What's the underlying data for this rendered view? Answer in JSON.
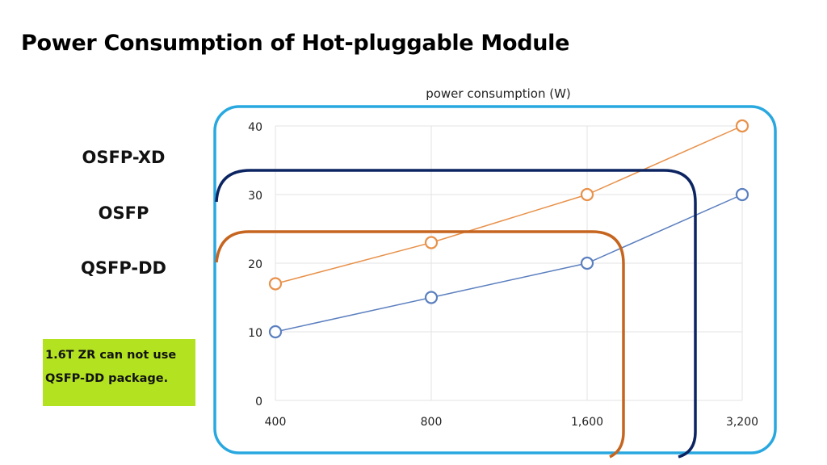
{
  "slide": {
    "title": "Power Consumption of Hot-pluggable Module",
    "labels": [
      "OSFP-XD",
      "OSFP",
      "QSFP-DD"
    ],
    "note": {
      "lines": [
        "1.6T ZR can not use",
        "QSFP-DD package."
      ],
      "background": "#b3e320"
    },
    "box_colors": {
      "OSFP-XD": "#29a8e0",
      "OSFP": "#0c2461",
      "QSFP-DD": "#c5651f"
    }
  },
  "chart_data": {
    "type": "line",
    "title": "power consumption (W)",
    "categories": [
      "400",
      "800",
      "1,600",
      "3,200"
    ],
    "yticks": [
      "0",
      "10",
      "20",
      "30",
      "40"
    ],
    "ylim": [
      0,
      40
    ],
    "grid": true,
    "series": [
      {
        "values": [
          17,
          23,
          30,
          40
        ],
        "color": "#e8914a"
      },
      {
        "values": [
          10,
          15,
          20,
          30
        ],
        "color": "#5b7fbf"
      }
    ]
  }
}
